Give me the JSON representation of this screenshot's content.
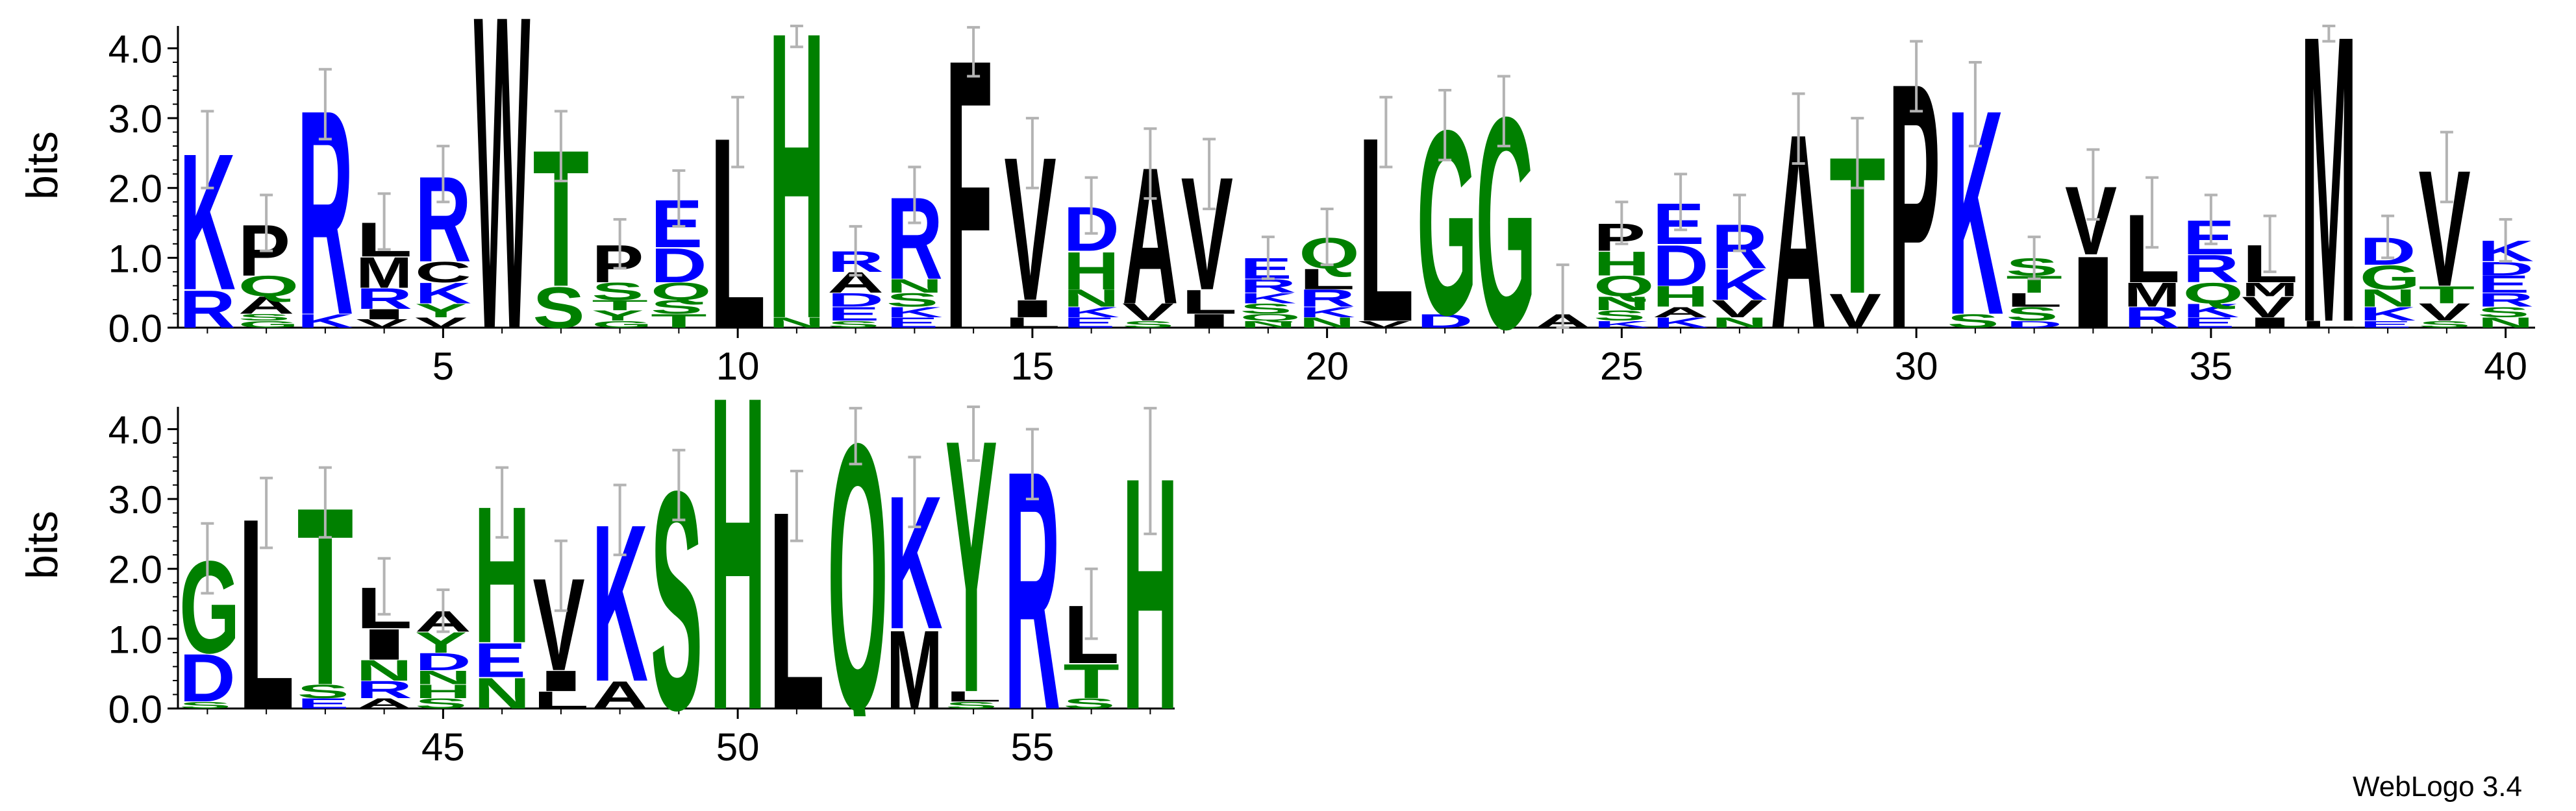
{
  "chart_data": {
    "type": "sequence-logo",
    "ylabel": "bits",
    "ylim": [
      0,
      4.32
    ],
    "yticks": [
      "0.0",
      "1.0",
      "2.0",
      "3.0",
      "4.0"
    ],
    "footer": "WebLogo 3.4",
    "colors": {
      "hydrophobic": "#000000",
      "polar": "#008000",
      "charged": "#0000ff"
    },
    "color_groups": {
      "hydrophobic": "ACFILMPVWY",
      "polar": "GHNQSTY",
      "charged": "DEKR"
    },
    "rows": [
      {
        "name": "row-1",
        "start": 1,
        "end": 40,
        "xticks": [
          5,
          10,
          15,
          20,
          25,
          30,
          35,
          40
        ]
      },
      {
        "name": "row-2",
        "start": 41,
        "end": 57,
        "xticks": [
          45,
          50,
          55
        ]
      }
    ],
    "positions": [
      {
        "pos": 1,
        "stack": [
          [
            "R",
            0.55
          ],
          [
            "K",
            2.0
          ]
        ],
        "err": 0.55
      },
      {
        "pos": 2,
        "stack": [
          [
            "G",
            0.1
          ],
          [
            "S",
            0.1
          ],
          [
            "A",
            0.25
          ],
          [
            "Q",
            0.3
          ],
          [
            "P",
            0.75
          ]
        ],
        "err": 0.4
      },
      {
        "pos": 3,
        "stack": [
          [
            "K",
            0.2
          ],
          [
            "R",
            3.0
          ]
        ],
        "err": 0.5
      },
      {
        "pos": 4,
        "stack": [
          [
            "V",
            0.12
          ],
          [
            "I",
            0.15
          ],
          [
            "R",
            0.3
          ],
          [
            "M",
            0.45
          ],
          [
            "L",
            0.5
          ]
        ],
        "err": 0.4
      },
      {
        "pos": 5,
        "stack": [
          [
            "V",
            0.15
          ],
          [
            "Y",
            0.2
          ],
          [
            "K",
            0.3
          ],
          [
            "C",
            0.3
          ],
          [
            "R",
            1.25
          ]
        ],
        "err": 0.4
      },
      {
        "pos": 6,
        "stack": [
          [
            "W",
            4.6
          ]
        ],
        "err": 0.0
      },
      {
        "pos": 7,
        "stack": [
          [
            "S",
            0.6
          ],
          [
            "T",
            2.0
          ]
        ],
        "err": 0.5
      },
      {
        "pos": 8,
        "stack": [
          [
            "G",
            0.1
          ],
          [
            "Y",
            0.15
          ],
          [
            "T",
            0.15
          ],
          [
            "S",
            0.25
          ],
          [
            "P",
            0.55
          ]
        ],
        "err": 0.35
      },
      {
        "pos": 9,
        "stack": [
          [
            "T",
            0.2
          ],
          [
            "S",
            0.2
          ],
          [
            "Q",
            0.25
          ],
          [
            "D",
            0.5
          ],
          [
            "E",
            0.7
          ]
        ],
        "err": 0.4
      },
      {
        "pos": 10,
        "stack": [
          [
            "L",
            2.8
          ]
        ],
        "err": 0.5
      },
      {
        "pos": 11,
        "stack": [
          [
            "N",
            0.15
          ],
          [
            "H",
            4.2
          ]
        ],
        "err": 0.3
      },
      {
        "pos": 12,
        "stack": [
          [
            "S",
            0.1
          ],
          [
            "E",
            0.2
          ],
          [
            "D",
            0.2
          ],
          [
            "A",
            0.3
          ],
          [
            "R",
            0.3
          ]
        ],
        "err": 0.35
      },
      {
        "pos": 13,
        "stack": [
          [
            "E",
            0.15
          ],
          [
            "K",
            0.15
          ],
          [
            "S",
            0.2
          ],
          [
            "N",
            0.2
          ],
          [
            "R",
            1.2
          ]
        ],
        "err": 0.4
      },
      {
        "pos": 14,
        "stack": [
          [
            "F",
            3.95
          ]
        ],
        "err": 0.35
      },
      {
        "pos": 15,
        "stack": [
          [
            "L",
            0.15
          ],
          [
            "I",
            0.25
          ],
          [
            "V",
            2.1
          ]
        ],
        "err": 0.5
      },
      {
        "pos": 16,
        "stack": [
          [
            "E",
            0.15
          ],
          [
            "K",
            0.15
          ],
          [
            "N",
            0.25
          ],
          [
            "H",
            0.55
          ],
          [
            "D",
            0.65
          ]
        ],
        "err": 0.4
      },
      {
        "pos": 17,
        "stack": [
          [
            "S",
            0.1
          ],
          [
            "V",
            0.25
          ],
          [
            "A",
            2.0
          ]
        ],
        "err": 0.5
      },
      {
        "pos": 18,
        "stack": [
          [
            "I",
            0.2
          ],
          [
            "L",
            0.35
          ],
          [
            "V",
            1.65
          ]
        ],
        "err": 0.5
      },
      {
        "pos": 19,
        "stack": [
          [
            "N",
            0.1
          ],
          [
            "Q",
            0.1
          ],
          [
            "S",
            0.15
          ],
          [
            "K",
            0.15
          ],
          [
            "R",
            0.2
          ],
          [
            "E",
            0.3
          ]
        ],
        "err": 0.3
      },
      {
        "pos": 20,
        "stack": [
          [
            "N",
            0.15
          ],
          [
            "K",
            0.15
          ],
          [
            "R",
            0.25
          ],
          [
            "L",
            0.3
          ],
          [
            "Q",
            0.45
          ]
        ],
        "err": 0.4
      },
      {
        "pos": 21,
        "stack": [
          [
            "V",
            0.1
          ],
          [
            "L",
            2.7
          ]
        ],
        "err": 0.5
      },
      {
        "pos": 22,
        "stack": [
          [
            "D",
            0.2
          ],
          [
            "G",
            2.7
          ]
        ],
        "err": 0.5
      },
      {
        "pos": 23,
        "stack": [
          [
            "G",
            3.1
          ]
        ],
        "err": 0.5
      },
      {
        "pos": 24,
        "stack": [
          [
            "A",
            0.2
          ]
        ],
        "err": 0.7
      },
      {
        "pos": 25,
        "stack": [
          [
            "K",
            0.1
          ],
          [
            "S",
            0.15
          ],
          [
            "N",
            0.2
          ],
          [
            "Q",
            0.3
          ],
          [
            "H",
            0.35
          ],
          [
            "P",
            0.4
          ]
        ],
        "err": 0.3
      },
      {
        "pos": 26,
        "stack": [
          [
            "K",
            0.15
          ],
          [
            "A",
            0.15
          ],
          [
            "H",
            0.3
          ],
          [
            "D",
            0.6
          ],
          [
            "E",
            0.6
          ]
        ],
        "err": 0.4
      },
      {
        "pos": 27,
        "stack": [
          [
            "N",
            0.15
          ],
          [
            "V",
            0.25
          ],
          [
            "K",
            0.45
          ],
          [
            "R",
            0.65
          ]
        ],
        "err": 0.4
      },
      {
        "pos": 28,
        "stack": [
          [
            "A",
            2.85
          ]
        ],
        "err": 0.5
      },
      {
        "pos": 29,
        "stack": [
          [
            "V",
            0.5
          ],
          [
            "T",
            2.0
          ]
        ],
        "err": 0.5
      },
      {
        "pos": 30,
        "stack": [
          [
            "P",
            3.6
          ]
        ],
        "err": 0.5
      },
      {
        "pos": 31,
        "stack": [
          [
            "S",
            0.2
          ],
          [
            "K",
            3.0
          ]
        ],
        "err": 0.6
      },
      {
        "pos": 32,
        "stack": [
          [
            "D",
            0.1
          ],
          [
            "S",
            0.2
          ],
          [
            "L",
            0.2
          ],
          [
            "T",
            0.25
          ],
          [
            "S",
            0.25
          ]
        ],
        "err": 0.3
      },
      {
        "pos": 33,
        "stack": [
          [
            "I",
            1.05
          ],
          [
            "V",
            1.0
          ]
        ],
        "err": 0.5
      },
      {
        "pos": 34,
        "stack": [
          [
            "R",
            0.3
          ],
          [
            "M",
            0.35
          ],
          [
            "L",
            1.0
          ]
        ],
        "err": 0.5
      },
      {
        "pos": 35,
        "stack": [
          [
            "E",
            0.15
          ],
          [
            "K",
            0.2
          ],
          [
            "Q",
            0.3
          ],
          [
            "R",
            0.4
          ],
          [
            "E",
            0.5
          ]
        ],
        "err": 0.35
      },
      {
        "pos": 36,
        "stack": [
          [
            "I",
            0.15
          ],
          [
            "V",
            0.3
          ],
          [
            "M",
            0.2
          ],
          [
            "L",
            0.55
          ]
        ],
        "err": 0.4
      },
      {
        "pos": 37,
        "stack": [
          [
            "L",
            0.1
          ],
          [
            "M",
            4.2
          ]
        ],
        "err": 0.2
      },
      {
        "pos": 38,
        "stack": [
          [
            "E",
            0.1
          ],
          [
            "K",
            0.2
          ],
          [
            "N",
            0.25
          ],
          [
            "G",
            0.35
          ],
          [
            "D",
            0.4
          ]
        ],
        "err": 0.3
      },
      {
        "pos": 39,
        "stack": [
          [
            "S",
            0.1
          ],
          [
            "V",
            0.25
          ],
          [
            "T",
            0.25
          ],
          [
            "V",
            1.7
          ]
        ],
        "err": 0.5
      },
      {
        "pos": 40,
        "stack": [
          [
            "N",
            0.15
          ],
          [
            "S",
            0.15
          ],
          [
            "R",
            0.2
          ],
          [
            "E",
            0.25
          ],
          [
            "D",
            0.2
          ],
          [
            "K",
            0.3
          ]
        ],
        "err": 0.3
      },
      {
        "pos": 41,
        "stack": [
          [
            "S",
            0.1
          ],
          [
            "D",
            0.7
          ],
          [
            "G",
            1.35
          ]
        ],
        "err": 0.5
      },
      {
        "pos": 42,
        "stack": [
          [
            "L",
            2.8
          ]
        ],
        "err": 0.5
      },
      {
        "pos": 43,
        "stack": [
          [
            "E",
            0.15
          ],
          [
            "S",
            0.2
          ],
          [
            "T",
            2.6
          ]
        ],
        "err": 0.5
      },
      {
        "pos": 44,
        "stack": [
          [
            "A",
            0.15
          ],
          [
            "R",
            0.25
          ],
          [
            "N",
            0.3
          ],
          [
            "I",
            0.45
          ],
          [
            "L",
            0.6
          ]
        ],
        "err": 0.4
      },
      {
        "pos": 45,
        "stack": [
          [
            "S",
            0.15
          ],
          [
            "H",
            0.2
          ],
          [
            "N",
            0.2
          ],
          [
            "D",
            0.25
          ],
          [
            "Y",
            0.3
          ],
          [
            "A",
            0.3
          ]
        ],
        "err": 0.3
      },
      {
        "pos": 46,
        "stack": [
          [
            "N",
            0.45
          ],
          [
            "E",
            0.5
          ],
          [
            "H",
            2.0
          ]
        ],
        "err": 0.5
      },
      {
        "pos": 47,
        "stack": [
          [
            "L",
            0.25
          ],
          [
            "I",
            0.3
          ],
          [
            "V",
            1.35
          ]
        ],
        "err": 0.5
      },
      {
        "pos": 48,
        "stack": [
          [
            "A",
            0.4
          ],
          [
            "K",
            2.3
          ]
        ],
        "err": 0.5
      },
      {
        "pos": 49,
        "stack": [
          [
            "S",
            3.2
          ]
        ],
        "err": 0.5
      },
      {
        "pos": 50,
        "stack": [
          [
            "H",
            4.6
          ]
        ],
        "err": 0.0
      },
      {
        "pos": 51,
        "stack": [
          [
            "L",
            2.9
          ]
        ],
        "err": 0.5
      },
      {
        "pos": 52,
        "stack": [
          [
            "Q",
            3.9
          ]
        ],
        "err": 0.4
      },
      {
        "pos": 53,
        "stack": [
          [
            "M",
            1.15
          ],
          [
            "K",
            1.95
          ]
        ],
        "err": 0.5
      },
      {
        "pos": 54,
        "stack": [
          [
            "S",
            0.1
          ],
          [
            "L",
            0.15
          ],
          [
            "Y",
            3.7
          ]
        ],
        "err": 0.4
      },
      {
        "pos": 55,
        "stack": [
          [
            "R",
            3.5
          ]
        ],
        "err": 0.5
      },
      {
        "pos": 56,
        "stack": [
          [
            "S",
            0.15
          ],
          [
            "T",
            0.5
          ],
          [
            "L",
            0.85
          ]
        ],
        "err": 0.5
      },
      {
        "pos": 57,
        "stack": [
          [
            "H",
            3.4
          ]
        ],
        "err": 0.9
      }
    ]
  }
}
